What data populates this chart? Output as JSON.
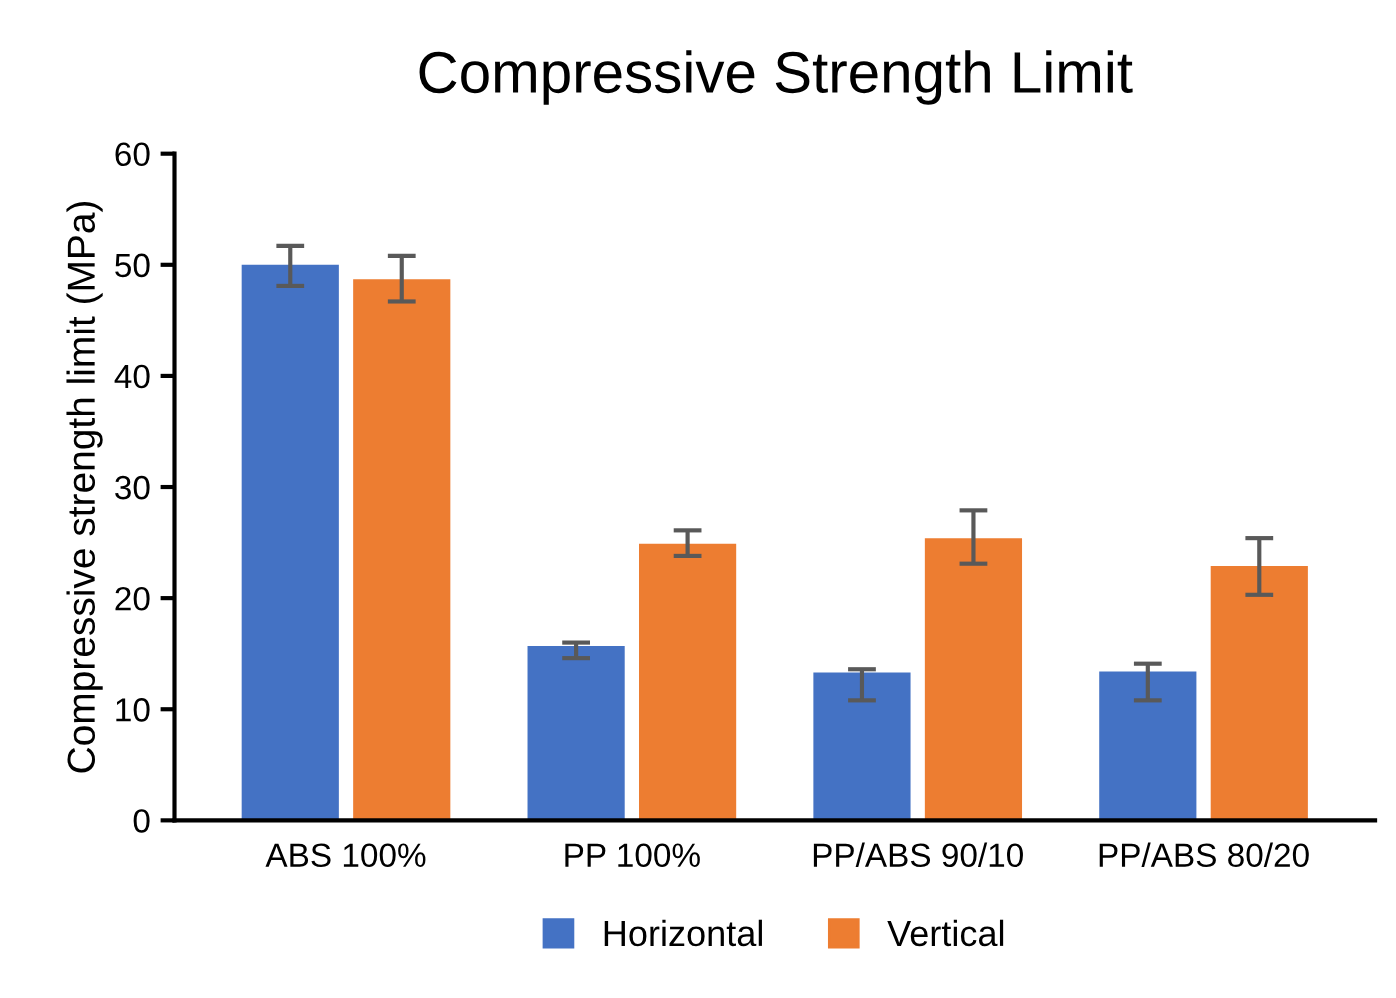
{
  "chart_data": {
    "type": "bar",
    "title": "Compressive Strength Limit",
    "ylabel": "Compressive strength limit (MPa)",
    "categories": [
      "ABS 100%",
      "PP 100%",
      "PP/ABS 90/10",
      "PP/ABS 80/20"
    ],
    "series": [
      {
        "name": "Horizontal",
        "color": "#4472c4",
        "values": [
          50,
          15.7,
          13.3,
          13.4
        ],
        "errors": [
          [
            48.1,
            51.7
          ],
          [
            14.6,
            16.0
          ],
          [
            10.8,
            13.6
          ],
          [
            10.8,
            14.1
          ]
        ]
      },
      {
        "name": "Vertical",
        "color": "#ed7d31",
        "values": [
          48.7,
          24.9,
          25.4,
          22.9
        ],
        "errors": [
          [
            46.7,
            50.8
          ],
          [
            23.8,
            26.1
          ],
          [
            23.1,
            27.9
          ],
          [
            20.3,
            25.4
          ]
        ]
      }
    ],
    "ylim": [
      0,
      60
    ],
    "yticks": [
      0,
      10,
      20,
      30,
      40,
      50,
      60
    ],
    "grid": false,
    "legend": "bottom"
  }
}
